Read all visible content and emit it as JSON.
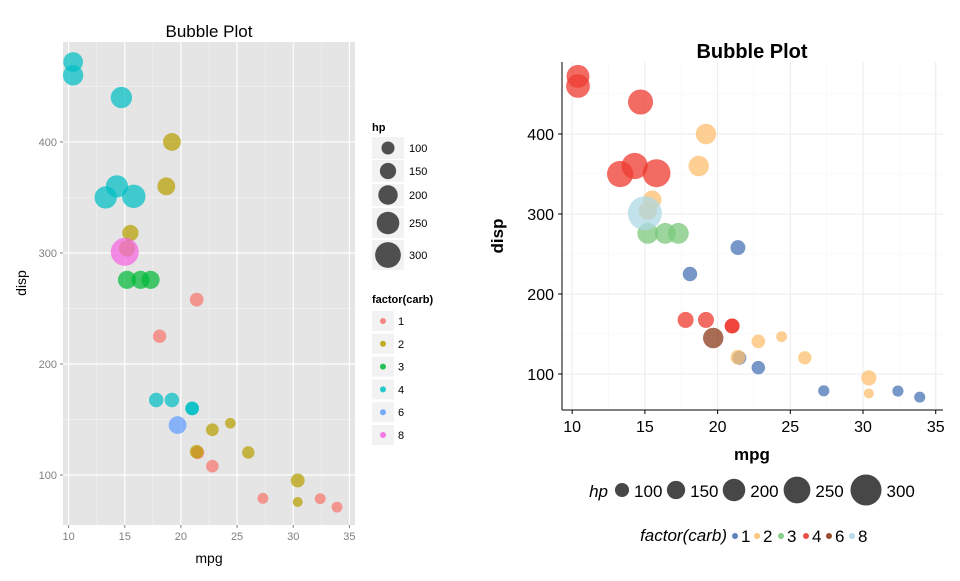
{
  "chart_data": [
    {
      "type": "scatter",
      "title": "Bubble Plot",
      "xlabel": "mpg",
      "ylabel": "disp",
      "xlim": [
        9.5,
        35.5
      ],
      "ylim": [
        55,
        490
      ],
      "xticks": [
        10,
        15,
        20,
        25,
        30,
        35
      ],
      "yticks": [
        100,
        200,
        300,
        400
      ],
      "grid": true,
      "background": "#E5E5E5",
      "legend_position": "right",
      "size_legend": {
        "title": "hp",
        "values": [
          100,
          150,
          200,
          250,
          300
        ],
        "labels": [
          "100",
          "150",
          "200",
          "250",
          "300"
        ]
      },
      "color_legend": {
        "title": "factor(carb)",
        "levels": [
          "1",
          "2",
          "3",
          "4",
          "6",
          "8"
        ]
      },
      "colors": {
        "1": "#F8766D",
        "2": "#B79F00",
        "3": "#00BA38",
        "4": "#00BFC4",
        "6": "#619CFF",
        "8": "#F564E3"
      },
      "points": [
        {
          "x": 21.0,
          "y": 160,
          "hp": 110,
          "carb": "4"
        },
        {
          "x": 21.0,
          "y": 160,
          "hp": 110,
          "carb": "4"
        },
        {
          "x": 22.8,
          "y": 108,
          "hp": 93,
          "carb": "1"
        },
        {
          "x": 21.4,
          "y": 258,
          "hp": 110,
          "carb": "1"
        },
        {
          "x": 18.7,
          "y": 360,
          "hp": 175,
          "carb": "2"
        },
        {
          "x": 18.1,
          "y": 225,
          "hp": 105,
          "carb": "1"
        },
        {
          "x": 14.3,
          "y": 360,
          "hp": 245,
          "carb": "4"
        },
        {
          "x": 24.4,
          "y": 146.7,
          "hp": 62,
          "carb": "2"
        },
        {
          "x": 22.8,
          "y": 140.8,
          "hp": 95,
          "carb": "2"
        },
        {
          "x": 19.2,
          "y": 167.6,
          "hp": 123,
          "carb": "4"
        },
        {
          "x": 17.8,
          "y": 167.6,
          "hp": 123,
          "carb": "4"
        },
        {
          "x": 16.4,
          "y": 275.8,
          "hp": 180,
          "carb": "3"
        },
        {
          "x": 17.3,
          "y": 275.8,
          "hp": 180,
          "carb": "3"
        },
        {
          "x": 15.2,
          "y": 275.8,
          "hp": 180,
          "carb": "3"
        },
        {
          "x": 10.4,
          "y": 472,
          "hp": 205,
          "carb": "4"
        },
        {
          "x": 10.4,
          "y": 460,
          "hp": 215,
          "carb": "4"
        },
        {
          "x": 14.7,
          "y": 440,
          "hp": 230,
          "carb": "4"
        },
        {
          "x": 32.4,
          "y": 78.7,
          "hp": 66,
          "carb": "1"
        },
        {
          "x": 30.4,
          "y": 75.7,
          "hp": 52,
          "carb": "2"
        },
        {
          "x": 33.9,
          "y": 71.1,
          "hp": 65,
          "carb": "1"
        },
        {
          "x": 21.5,
          "y": 120.1,
          "hp": 97,
          "carb": "1"
        },
        {
          "x": 15.5,
          "y": 318,
          "hp": 150,
          "carb": "2"
        },
        {
          "x": 15.2,
          "y": 304,
          "hp": 150,
          "carb": "2"
        },
        {
          "x": 13.3,
          "y": 350,
          "hp": 245,
          "carb": "4"
        },
        {
          "x": 19.2,
          "y": 400,
          "hp": 175,
          "carb": "2"
        },
        {
          "x": 27.3,
          "y": 79,
          "hp": 66,
          "carb": "1"
        },
        {
          "x": 26.0,
          "y": 120.3,
          "hp": 91,
          "carb": "2"
        },
        {
          "x": 30.4,
          "y": 95.1,
          "hp": 113,
          "carb": "2"
        },
        {
          "x": 15.8,
          "y": 351,
          "hp": 264,
          "carb": "4"
        },
        {
          "x": 19.7,
          "y": 145,
          "hp": 175,
          "carb": "6"
        },
        {
          "x": 15.0,
          "y": 301,
          "hp": 335,
          "carb": "8"
        },
        {
          "x": 21.4,
          "y": 121,
          "hp": 109,
          "carb": "2"
        }
      ]
    },
    {
      "type": "scatter",
      "title": "Bubble Plot",
      "xlabel": "mpg",
      "ylabel": "disp",
      "xlim": [
        9.3,
        35.5
      ],
      "ylim": [
        55,
        490
      ],
      "xticks": [
        10,
        15,
        20,
        25,
        30,
        35
      ],
      "yticks": [
        100,
        200,
        300,
        400
      ],
      "grid": true,
      "background": "#FFFFFF",
      "legend_position": "bottom",
      "size_legend": {
        "title": "hp",
        "values": [
          100,
          150,
          200,
          250,
          300
        ],
        "labels": [
          "100",
          "150",
          "200",
          "250",
          "300"
        ]
      },
      "color_legend": {
        "title": "factor(carb)",
        "levels": [
          "1",
          "2",
          "3",
          "4",
          "6",
          "8"
        ]
      },
      "colors": {
        "1": "#4A74B5",
        "2": "#FDBF6F",
        "3": "#7BC87B",
        "4": "#EE3B30",
        "6": "#8B3A1A",
        "8": "#ADD8E6"
      }
    }
  ]
}
